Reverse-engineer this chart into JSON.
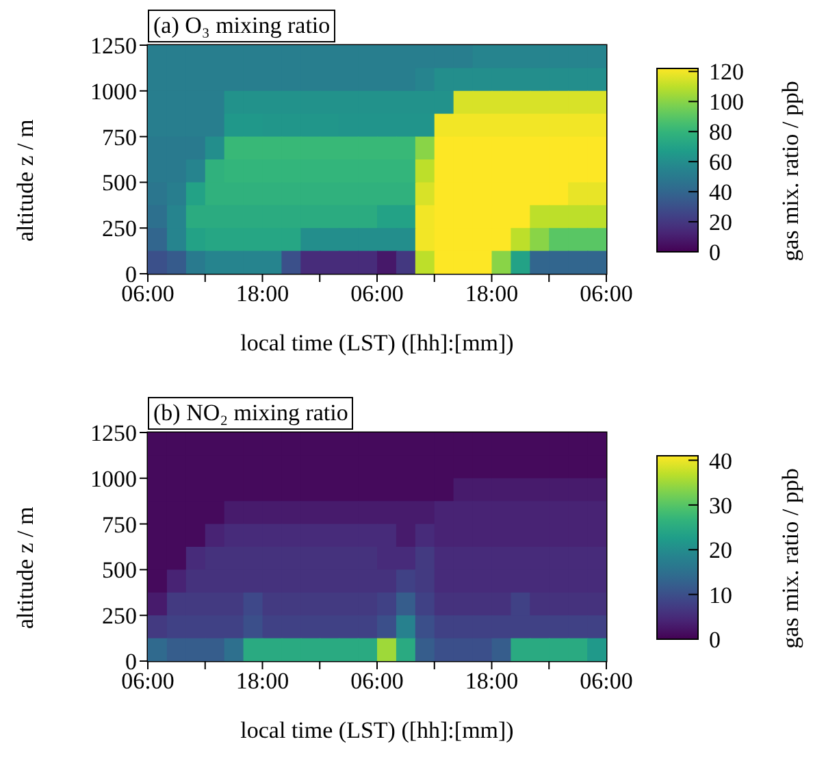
{
  "chart_data": [
    {
      "type": "scatter",
      "marker": "square",
      "title": "(a) O₃ mixing ratio",
      "xlabel": "local time (LST) ([hh]:[mm])",
      "ylabel": "altitude z / m",
      "clabel": "gas mix. ratio / ppb",
      "x": [
        "2000-01-01T07:00",
        "2000-01-01T09:00",
        "2000-01-01T11:00",
        "2000-01-01T13:00",
        "2000-01-01T15:00",
        "2000-01-01T17:00",
        "2000-01-01T19:00",
        "2000-01-01T21:00",
        "2000-01-01T23:00",
        "2000-01-02T01:00",
        "2000-01-02T03:00",
        "2000-01-02T05:00",
        "2000-01-02T07:00",
        "2000-01-02T09:00",
        "2000-01-02T11:00",
        "2000-01-02T13:00",
        "2000-01-02T15:00",
        "2000-01-02T17:00",
        "2000-01-02T19:00",
        "2000-01-02T21:00",
        "2000-01-02T23:00",
        "2000-01-03T01:00",
        "2000-01-03T03:00",
        "2000-01-03T05:00",
        "2000-01-01T07:00",
        "2000-01-01T09:00",
        "2000-01-01T11:00",
        "2000-01-01T13:00",
        "2000-01-01T15:00",
        "2000-01-01T17:00",
        "2000-01-01T19:00",
        "2000-01-01T21:00",
        "2000-01-01T23:00",
        "2000-01-02T01:00",
        "2000-01-02T03:00",
        "2000-01-02T05:00",
        "2000-01-02T07:00",
        "2000-01-02T09:00",
        "2000-01-02T11:00",
        "2000-01-02T13:00",
        "2000-01-02T15:00",
        "2000-01-02T17:00",
        "2000-01-02T19:00",
        "2000-01-02T21:00",
        "2000-01-02T23:00",
        "2000-01-03T01:00",
        "2000-01-03T03:00",
        "2000-01-03T05:00",
        "2000-01-01T07:00",
        "2000-01-01T09:00",
        "2000-01-01T11:00",
        "2000-01-01T13:00",
        "2000-01-01T15:00",
        "2000-01-01T17:00",
        "2000-01-01T19:00",
        "2000-01-01T21:00",
        "2000-01-01T23:00",
        "2000-01-02T01:00",
        "2000-01-02T03:00",
        "2000-01-02T05:00",
        "2000-01-02T07:00",
        "2000-01-02T09:00",
        "2000-01-02T11:00",
        "2000-01-02T13:00",
        "2000-01-02T15:00",
        "2000-01-02T17:00",
        "2000-01-02T19:00",
        "2000-01-02T21:00",
        "2000-01-02T23:00",
        "2000-01-03T01:00",
        "2000-01-03T03:00",
        "2000-01-03T05:00",
        "2000-01-01T07:00",
        "2000-01-01T09:00",
        "2000-01-01T11:00",
        "2000-01-01T13:00",
        "2000-01-01T15:00",
        "2000-01-01T17:00",
        "2000-01-01T19:00",
        "2000-01-01T21:00",
        "2000-01-01T23:00",
        "2000-01-02T01:00",
        "2000-01-02T03:00",
        "2000-01-02T05:00",
        "2000-01-02T07:00",
        "2000-01-02T09:00",
        "2000-01-02T11:00",
        "2000-01-02T13:00",
        "2000-01-02T15:00",
        "2000-01-02T17:00",
        "2000-01-02T19:00",
        "2000-01-02T21:00",
        "2000-01-02T23:00",
        "2000-01-03T01:00",
        "2000-01-03T03:00",
        "2000-01-03T05:00",
        "2000-01-01T07:00",
        "2000-01-01T09:00",
        "2000-01-01T11:00",
        "2000-01-01T13:00",
        "2000-01-01T15:00",
        "2000-01-01T17:00",
        "2000-01-01T19:00",
        "2000-01-01T21:00",
        "2000-01-01T23:00",
        "2000-01-02T01:00",
        "2000-01-02T03:00",
        "2000-01-02T05:00",
        "2000-01-02T07:00",
        "2000-01-02T09:00",
        "2000-01-02T11:00",
        "2000-01-02T13:00",
        "2000-01-02T15:00",
        "2000-01-02T17:00",
        "2000-01-02T19:00",
        "2000-01-02T21:00",
        "2000-01-02T23:00",
        "2000-01-03T01:00",
        "2000-01-03T03:00",
        "2000-01-03T05:00",
        "2000-01-01T07:00",
        "2000-01-01T09:00",
        "2000-01-01T11:00",
        "2000-01-01T13:00",
        "2000-01-01T15:00",
        "2000-01-01T17:00",
        "2000-01-01T19:00",
        "2000-01-01T21:00",
        "2000-01-01T23:00",
        "2000-01-02T01:00",
        "2000-01-02T03:00",
        "2000-01-02T05:00",
        "2000-01-02T07:00",
        "2000-01-02T09:00",
        "2000-01-02T11:00",
        "2000-01-02T13:00",
        "2000-01-02T15:00",
        "2000-01-02T17:00",
        "2000-01-02T19:00",
        "2000-01-02T21:00",
        "2000-01-02T23:00",
        "2000-01-03T01:00",
        "2000-01-03T03:00",
        "2000-01-03T05:00",
        "2000-01-01T07:00",
        "2000-01-01T09:00",
        "2000-01-01T11:00",
        "2000-01-01T13:00",
        "2000-01-01T15:00",
        "2000-01-01T17:00",
        "2000-01-01T19:00",
        "2000-01-01T21:00",
        "2000-01-01T23:00",
        "2000-01-02T01:00",
        "2000-01-02T03:00",
        "2000-01-02T05:00",
        "2000-01-02T07:00",
        "2000-01-02T09:00",
        "2000-01-02T11:00",
        "2000-01-02T13:00",
        "2000-01-02T15:00",
        "2000-01-02T17:00",
        "2000-01-02T19:00",
        "2000-01-02T21:00",
        "2000-01-02T23:00",
        "2000-01-03T01:00",
        "2000-01-03T03:00",
        "2000-01-03T05:00",
        "2000-01-01T07:00",
        "2000-01-01T09:00",
        "2000-01-01T11:00",
        "2000-01-01T13:00",
        "2000-01-01T15:00",
        "2000-01-01T17:00",
        "2000-01-01T19:00",
        "2000-01-01T21:00",
        "2000-01-01T23:00",
        "2000-01-02T01:00",
        "2000-01-02T03:00",
        "2000-01-02T05:00",
        "2000-01-02T07:00",
        "2000-01-02T09:00",
        "2000-01-02T11:00",
        "2000-01-02T13:00",
        "2000-01-02T15:00",
        "2000-01-02T17:00",
        "2000-01-02T19:00",
        "2000-01-02T21:00",
        "2000-01-02T23:00",
        "2000-01-03T01:00",
        "2000-01-03T03:00",
        "2000-01-03T05:00",
        "2000-01-01T07:00",
        "2000-01-01T09:00",
        "2000-01-01T11:00",
        "2000-01-01T13:00",
        "2000-01-01T15:00",
        "2000-01-01T17:00",
        "2000-01-01T19:00",
        "2000-01-01T21:00",
        "2000-01-01T23:00",
        "2000-01-02T01:00",
        "2000-01-02T03:00",
        "2000-01-02T05:00",
        "2000-01-02T07:00",
        "2000-01-02T09:00",
        "2000-01-02T11:00",
        "2000-01-02T13:00",
        "2000-01-02T15:00",
        "2000-01-02T17:00",
        "2000-01-02T19:00",
        "2000-01-02T21:00",
        "2000-01-02T23:00",
        "2000-01-03T01:00",
        "2000-01-03T03:00",
        "2000-01-03T05:00",
        "2000-01-01T07:00",
        "2000-01-01T09:00",
        "2000-01-01T11:00",
        "2000-01-01T13:00",
        "2000-01-01T15:00",
        "2000-01-01T17:00",
        "2000-01-01T19:00",
        "2000-01-01T21:00",
        "2000-01-01T23:00",
        "2000-01-02T01:00",
        "2000-01-02T03:00",
        "2000-01-02T05:00",
        "2000-01-02T07:00",
        "2000-01-02T09:00",
        "2000-01-02T11:00",
        "2000-01-02T13:00",
        "2000-01-02T15:00",
        "2000-01-02T17:00",
        "2000-01-02T19:00",
        "2000-01-02T21:00",
        "2000-01-02T23:00",
        "2000-01-03T01:00",
        "2000-01-03T03:00",
        "2000-01-03T05:00"
      ],
      "values": [
        1187.5,
        1187.5,
        1187.5,
        1187.5,
        1187.5,
        1187.5,
        1187.5,
        1187.5,
        1187.5,
        1187.5,
        1187.5,
        1187.5,
        1187.5,
        1187.5,
        1187.5,
        1187.5,
        1187.5,
        1187.5,
        1187.5,
        1187.5,
        1187.5,
        1187.5,
        1187.5,
        1187.5,
        1062.5,
        1062.5,
        1062.5,
        1062.5,
        1062.5,
        1062.5,
        1062.5,
        1062.5,
        1062.5,
        1062.5,
        1062.5,
        1062.5,
        1062.5,
        1062.5,
        1062.5,
        1062.5,
        1062.5,
        1062.5,
        1062.5,
        1062.5,
        1062.5,
        1062.5,
        1062.5,
        1062.5,
        937.5,
        937.5,
        937.5,
        937.5,
        937.5,
        937.5,
        937.5,
        937.5,
        937.5,
        937.5,
        937.5,
        937.5,
        937.5,
        937.5,
        937.5,
        937.5,
        937.5,
        937.5,
        937.5,
        937.5,
        937.5,
        937.5,
        937.5,
        937.5,
        812.5,
        812.5,
        812.5,
        812.5,
        812.5,
        812.5,
        812.5,
        812.5,
        812.5,
        812.5,
        812.5,
        812.5,
        812.5,
        812.5,
        812.5,
        812.5,
        812.5,
        812.5,
        812.5,
        812.5,
        812.5,
        812.5,
        812.5,
        812.5,
        687.5,
        687.5,
        687.5,
        687.5,
        687.5,
        687.5,
        687.5,
        687.5,
        687.5,
        687.5,
        687.5,
        687.5,
        687.5,
        687.5,
        687.5,
        687.5,
        687.5,
        687.5,
        687.5,
        687.5,
        687.5,
        687.5,
        687.5,
        687.5,
        562.5,
        562.5,
        562.5,
        562.5,
        562.5,
        562.5,
        562.5,
        562.5,
        562.5,
        562.5,
        562.5,
        562.5,
        562.5,
        562.5,
        562.5,
        562.5,
        562.5,
        562.5,
        562.5,
        562.5,
        562.5,
        562.5,
        562.5,
        562.5,
        437.5,
        437.5,
        437.5,
        437.5,
        437.5,
        437.5,
        437.5,
        437.5,
        437.5,
        437.5,
        437.5,
        437.5,
        437.5,
        437.5,
        437.5,
        437.5,
        437.5,
        437.5,
        437.5,
        437.5,
        437.5,
        437.5,
        437.5,
        437.5,
        312.5,
        312.5,
        312.5,
        312.5,
        312.5,
        312.5,
        312.5,
        312.5,
        312.5,
        312.5,
        312.5,
        312.5,
        312.5,
        312.5,
        312.5,
        312.5,
        312.5,
        312.5,
        312.5,
        312.5,
        312.5,
        312.5,
        312.5,
        312.5,
        187.5,
        187.5,
        187.5,
        187.5,
        187.5,
        187.5,
        187.5,
        187.5,
        187.5,
        187.5,
        187.5,
        187.5,
        187.5,
        187.5,
        187.5,
        187.5,
        187.5,
        187.5,
        187.5,
        187.5,
        187.5,
        187.5,
        187.5,
        187.5,
        62.5,
        62.5,
        62.5,
        62.5,
        62.5,
        62.5,
        62.5,
        62.5,
        62.5,
        62.5,
        62.5,
        62.5,
        62.5,
        62.5,
        62.5,
        62.5,
        62.5,
        62.5,
        62.5,
        62.5,
        62.5,
        62.5,
        62.5,
        62.5
      ],
      "cvalues": [
        52,
        52,
        52,
        52,
        52,
        52,
        52,
        52,
        52,
        52,
        52,
        52,
        52,
        52,
        52,
        52,
        52,
        55,
        55,
        55,
        55,
        55,
        55,
        55,
        52,
        52,
        52,
        52,
        52,
        52,
        52,
        52,
        52,
        52,
        52,
        52,
        52,
        52,
        55,
        60,
        60,
        60,
        60,
        60,
        60,
        60,
        60,
        60,
        52,
        52,
        52,
        52,
        62,
        62,
        62,
        62,
        62,
        62,
        62,
        62,
        62,
        62,
        62,
        62,
        115,
        115,
        115,
        115,
        115,
        115,
        115,
        115,
        52,
        52,
        52,
        52,
        65,
        65,
        64,
        64,
        64,
        64,
        63,
        63,
        63,
        63,
        63,
        120,
        120,
        120,
        120,
        120,
        120,
        120,
        120,
        120,
        50,
        50,
        50,
        60,
        82,
        82,
        82,
        82,
        82,
        82,
        82,
        82,
        82,
        82,
        100,
        122,
        122,
        122,
        122,
        122,
        122,
        122,
        122,
        122,
        50,
        50,
        55,
        78,
        80,
        80,
        80,
        80,
        80,
        80,
        80,
        80,
        80,
        80,
        110,
        122,
        122,
        122,
        122,
        122,
        122,
        122,
        122,
        122,
        48,
        52,
        70,
        78,
        78,
        78,
        78,
        78,
        78,
        78,
        78,
        78,
        78,
        78,
        115,
        122,
        122,
        122,
        122,
        122,
        122,
        122,
        118,
        118,
        45,
        55,
        75,
        75,
        75,
        75,
        75,
        75,
        75,
        75,
        75,
        75,
        70,
        70,
        120,
        122,
        122,
        122,
        122,
        122,
        110,
        110,
        110,
        110,
        40,
        55,
        70,
        72,
        72,
        72,
        72,
        72,
        60,
        60,
        60,
        60,
        60,
        60,
        120,
        122,
        122,
        122,
        122,
        110,
        100,
        90,
        90,
        90,
        30,
        35,
        50,
        55,
        55,
        55,
        55,
        30,
        15,
        15,
        15,
        15,
        8,
        20,
        110,
        122,
        122,
        122,
        100,
        70,
        40,
        40,
        40,
        40
      ],
      "clim": [
        0,
        122
      ],
      "cticks": [
        0,
        20,
        40,
        60,
        80,
        100,
        120
      ],
      "xlim": [
        "2000-01-01T06:00",
        "2000-01-03T06:00"
      ],
      "xticks": [
        {
          "value": "2000-01-01T06:00",
          "label": "06:00"
        },
        {
          "value": "2000-01-01T12:00",
          "label": null
        },
        {
          "value": "2000-01-01T18:00",
          "label": "18:00"
        },
        {
          "value": "2000-01-02T00:00",
          "label": null
        },
        {
          "value": "2000-01-02T06:00",
          "label": "06:00"
        },
        {
          "value": "2000-01-02T12:00",
          "label": null
        },
        {
          "value": "2000-01-02T18:00",
          "label": "18:00"
        },
        {
          "value": "2000-01-03T00:00",
          "label": null
        },
        {
          "value": "2000-01-03T06:00",
          "label": "06:00"
        }
      ],
      "ylim": [
        0,
        1250
      ],
      "yticks": [
        0,
        250,
        500,
        750,
        1000,
        1250
      ]
    },
    {
      "type": "scatter",
      "marker": "square",
      "title": "(b) NO₂ mixing ratio",
      "xlabel": "local time (LST) ([hh]:[mm])",
      "ylabel": "altitude z / m",
      "clabel": "gas mix. ratio / ppb",
      "x": [
        "2000-01-01T07:00",
        "2000-01-01T09:00",
        "2000-01-01T11:00",
        "2000-01-01T13:00",
        "2000-01-01T15:00",
        "2000-01-01T17:00",
        "2000-01-01T19:00",
        "2000-01-01T21:00",
        "2000-01-01T23:00",
        "2000-01-02T01:00",
        "2000-01-02T03:00",
        "2000-01-02T05:00",
        "2000-01-02T07:00",
        "2000-01-02T09:00",
        "2000-01-02T11:00",
        "2000-01-02T13:00",
        "2000-01-02T15:00",
        "2000-01-02T17:00",
        "2000-01-02T19:00",
        "2000-01-02T21:00",
        "2000-01-02T23:00",
        "2000-01-03T01:00",
        "2000-01-03T03:00",
        "2000-01-03T05:00",
        "2000-01-01T07:00",
        "2000-01-01T09:00",
        "2000-01-01T11:00",
        "2000-01-01T13:00",
        "2000-01-01T15:00",
        "2000-01-01T17:00",
        "2000-01-01T19:00",
        "2000-01-01T21:00",
        "2000-01-01T23:00",
        "2000-01-02T01:00",
        "2000-01-02T03:00",
        "2000-01-02T05:00",
        "2000-01-02T07:00",
        "2000-01-02T09:00",
        "2000-01-02T11:00",
        "2000-01-02T13:00",
        "2000-01-02T15:00",
        "2000-01-02T17:00",
        "2000-01-02T19:00",
        "2000-01-02T21:00",
        "2000-01-02T23:00",
        "2000-01-03T01:00",
        "2000-01-03T03:00",
        "2000-01-03T05:00",
        "2000-01-01T07:00",
        "2000-01-01T09:00",
        "2000-01-01T11:00",
        "2000-01-01T13:00",
        "2000-01-01T15:00",
        "2000-01-01T17:00",
        "2000-01-01T19:00",
        "2000-01-01T21:00",
        "2000-01-01T23:00",
        "2000-01-02T01:00",
        "2000-01-02T03:00",
        "2000-01-02T05:00",
        "2000-01-02T07:00",
        "2000-01-02T09:00",
        "2000-01-02T11:00",
        "2000-01-02T13:00",
        "2000-01-02T15:00",
        "2000-01-02T17:00",
        "2000-01-02T19:00",
        "2000-01-02T21:00",
        "2000-01-02T23:00",
        "2000-01-03T01:00",
        "2000-01-03T03:00",
        "2000-01-03T05:00",
        "2000-01-01T07:00",
        "2000-01-01T09:00",
        "2000-01-01T11:00",
        "2000-01-01T13:00",
        "2000-01-01T15:00",
        "2000-01-01T17:00",
        "2000-01-01T19:00",
        "2000-01-01T21:00",
        "2000-01-01T23:00",
        "2000-01-02T01:00",
        "2000-01-02T03:00",
        "2000-01-02T05:00",
        "2000-01-02T07:00",
        "2000-01-02T09:00",
        "2000-01-02T11:00",
        "2000-01-02T13:00",
        "2000-01-02T15:00",
        "2000-01-02T17:00",
        "2000-01-02T19:00",
        "2000-01-02T21:00",
        "2000-01-02T23:00",
        "2000-01-03T01:00",
        "2000-01-03T03:00",
        "2000-01-03T05:00",
        "2000-01-01T07:00",
        "2000-01-01T09:00",
        "2000-01-01T11:00",
        "2000-01-01T13:00",
        "2000-01-01T15:00",
        "2000-01-01T17:00",
        "2000-01-01T19:00",
        "2000-01-01T21:00",
        "2000-01-01T23:00",
        "2000-01-02T01:00",
        "2000-01-02T03:00",
        "2000-01-02T05:00",
        "2000-01-02T07:00",
        "2000-01-02T09:00",
        "2000-01-02T11:00",
        "2000-01-02T13:00",
        "2000-01-02T15:00",
        "2000-01-02T17:00",
        "2000-01-02T19:00",
        "2000-01-02T21:00",
        "2000-01-02T23:00",
        "2000-01-03T01:00",
        "2000-01-03T03:00",
        "2000-01-03T05:00",
        "2000-01-01T07:00",
        "2000-01-01T09:00",
        "2000-01-01T11:00",
        "2000-01-01T13:00",
        "2000-01-01T15:00",
        "2000-01-01T17:00",
        "2000-01-01T19:00",
        "2000-01-01T21:00",
        "2000-01-01T23:00",
        "2000-01-02T01:00",
        "2000-01-02T03:00",
        "2000-01-02T05:00",
        "2000-01-02T07:00",
        "2000-01-02T09:00",
        "2000-01-02T11:00",
        "2000-01-02T13:00",
        "2000-01-02T15:00",
        "2000-01-02T17:00",
        "2000-01-02T19:00",
        "2000-01-02T21:00",
        "2000-01-02T23:00",
        "2000-01-03T01:00",
        "2000-01-03T03:00",
        "2000-01-03T05:00",
        "2000-01-01T07:00",
        "2000-01-01T09:00",
        "2000-01-01T11:00",
        "2000-01-01T13:00",
        "2000-01-01T15:00",
        "2000-01-01T17:00",
        "2000-01-01T19:00",
        "2000-01-01T21:00",
        "2000-01-01T23:00",
        "2000-01-02T01:00",
        "2000-01-02T03:00",
        "2000-01-02T05:00",
        "2000-01-02T07:00",
        "2000-01-02T09:00",
        "2000-01-02T11:00",
        "2000-01-02T13:00",
        "2000-01-02T15:00",
        "2000-01-02T17:00",
        "2000-01-02T19:00",
        "2000-01-02T21:00",
        "2000-01-02T23:00",
        "2000-01-03T01:00",
        "2000-01-03T03:00",
        "2000-01-03T05:00",
        "2000-01-01T07:00",
        "2000-01-01T09:00",
        "2000-01-01T11:00",
        "2000-01-01T13:00",
        "2000-01-01T15:00",
        "2000-01-01T17:00",
        "2000-01-01T19:00",
        "2000-01-01T21:00",
        "2000-01-01T23:00",
        "2000-01-02T01:00",
        "2000-01-02T03:00",
        "2000-01-02T05:00",
        "2000-01-02T07:00",
        "2000-01-02T09:00",
        "2000-01-02T11:00",
        "2000-01-02T13:00",
        "2000-01-02T15:00",
        "2000-01-02T17:00",
        "2000-01-02T19:00",
        "2000-01-02T21:00",
        "2000-01-02T23:00",
        "2000-01-03T01:00",
        "2000-01-03T03:00",
        "2000-01-03T05:00",
        "2000-01-01T07:00",
        "2000-01-01T09:00",
        "2000-01-01T11:00",
        "2000-01-01T13:00",
        "2000-01-01T15:00",
        "2000-01-01T17:00",
        "2000-01-01T19:00",
        "2000-01-01T21:00",
        "2000-01-01T23:00",
        "2000-01-02T01:00",
        "2000-01-02T03:00",
        "2000-01-02T05:00",
        "2000-01-02T07:00",
        "2000-01-02T09:00",
        "2000-01-02T11:00",
        "2000-01-02T13:00",
        "2000-01-02T15:00",
        "2000-01-02T17:00",
        "2000-01-02T19:00",
        "2000-01-02T21:00",
        "2000-01-02T23:00",
        "2000-01-03T01:00",
        "2000-01-03T03:00",
        "2000-01-03T05:00",
        "2000-01-01T07:00",
        "2000-01-01T09:00",
        "2000-01-01T11:00",
        "2000-01-01T13:00",
        "2000-01-01T15:00",
        "2000-01-01T17:00",
        "2000-01-01T19:00",
        "2000-01-01T21:00",
        "2000-01-01T23:00",
        "2000-01-02T01:00",
        "2000-01-02T03:00",
        "2000-01-02T05:00",
        "2000-01-02T07:00",
        "2000-01-02T09:00",
        "2000-01-02T11:00",
        "2000-01-02T13:00",
        "2000-01-02T15:00",
        "2000-01-02T17:00",
        "2000-01-02T19:00",
        "2000-01-02T21:00",
        "2000-01-02T23:00",
        "2000-01-03T01:00",
        "2000-01-03T03:00",
        "2000-01-03T05:00"
      ],
      "values": [
        1187.5,
        1187.5,
        1187.5,
        1187.5,
        1187.5,
        1187.5,
        1187.5,
        1187.5,
        1187.5,
        1187.5,
        1187.5,
        1187.5,
        1187.5,
        1187.5,
        1187.5,
        1187.5,
        1187.5,
        1187.5,
        1187.5,
        1187.5,
        1187.5,
        1187.5,
        1187.5,
        1187.5,
        1062.5,
        1062.5,
        1062.5,
        1062.5,
        1062.5,
        1062.5,
        1062.5,
        1062.5,
        1062.5,
        1062.5,
        1062.5,
        1062.5,
        1062.5,
        1062.5,
        1062.5,
        1062.5,
        1062.5,
        1062.5,
        1062.5,
        1062.5,
        1062.5,
        1062.5,
        1062.5,
        1062.5,
        937.5,
        937.5,
        937.5,
        937.5,
        937.5,
        937.5,
        937.5,
        937.5,
        937.5,
        937.5,
        937.5,
        937.5,
        937.5,
        937.5,
        937.5,
        937.5,
        937.5,
        937.5,
        937.5,
        937.5,
        937.5,
        937.5,
        937.5,
        937.5,
        812.5,
        812.5,
        812.5,
        812.5,
        812.5,
        812.5,
        812.5,
        812.5,
        812.5,
        812.5,
        812.5,
        812.5,
        812.5,
        812.5,
        812.5,
        812.5,
        812.5,
        812.5,
        812.5,
        812.5,
        812.5,
        812.5,
        812.5,
        812.5,
        687.5,
        687.5,
        687.5,
        687.5,
        687.5,
        687.5,
        687.5,
        687.5,
        687.5,
        687.5,
        687.5,
        687.5,
        687.5,
        687.5,
        687.5,
        687.5,
        687.5,
        687.5,
        687.5,
        687.5,
        687.5,
        687.5,
        687.5,
        687.5,
        562.5,
        562.5,
        562.5,
        562.5,
        562.5,
        562.5,
        562.5,
        562.5,
        562.5,
        562.5,
        562.5,
        562.5,
        562.5,
        562.5,
        562.5,
        562.5,
        562.5,
        562.5,
        562.5,
        562.5,
        562.5,
        562.5,
        562.5,
        562.5,
        437.5,
        437.5,
        437.5,
        437.5,
        437.5,
        437.5,
        437.5,
        437.5,
        437.5,
        437.5,
        437.5,
        437.5,
        437.5,
        437.5,
        437.5,
        437.5,
        437.5,
        437.5,
        437.5,
        437.5,
        437.5,
        437.5,
        437.5,
        437.5,
        312.5,
        312.5,
        312.5,
        312.5,
        312.5,
        312.5,
        312.5,
        312.5,
        312.5,
        312.5,
        312.5,
        312.5,
        312.5,
        312.5,
        312.5,
        312.5,
        312.5,
        312.5,
        312.5,
        312.5,
        312.5,
        312.5,
        312.5,
        312.5,
        187.5,
        187.5,
        187.5,
        187.5,
        187.5,
        187.5,
        187.5,
        187.5,
        187.5,
        187.5,
        187.5,
        187.5,
        187.5,
        187.5,
        187.5,
        187.5,
        187.5,
        187.5,
        187.5,
        187.5,
        187.5,
        187.5,
        187.5,
        187.5,
        62.5,
        62.5,
        62.5,
        62.5,
        62.5,
        62.5,
        62.5,
        62.5,
        62.5,
        62.5,
        62.5,
        62.5,
        62.5,
        62.5,
        62.5,
        62.5,
        62.5,
        62.5,
        62.5,
        62.5,
        62.5,
        62.5,
        62.5,
        62.5
      ],
      "cvalues": [
        1,
        1,
        1,
        1,
        1,
        1,
        1,
        1,
        1,
        1,
        1,
        1,
        1,
        1,
        1,
        1,
        1,
        1,
        1,
        1,
        1,
        1,
        1,
        1,
        1,
        1,
        1,
        1,
        1,
        1,
        1,
        1,
        1,
        1,
        1,
        1,
        1,
        1,
        1,
        1,
        1,
        1,
        1,
        1,
        1,
        1,
        1,
        1,
        1,
        1,
        1,
        1,
        1,
        1,
        1,
        1,
        1,
        1,
        1,
        1,
        1,
        1,
        1,
        1,
        3,
        3,
        3,
        3,
        3,
        3,
        3,
        3,
        1,
        1,
        1,
        1,
        3,
        3,
        3,
        3,
        3,
        3,
        3,
        3,
        3,
        3,
        3,
        4,
        4,
        4,
        4,
        4,
        4,
        4,
        4,
        4,
        1,
        1,
        1,
        4,
        5,
        5,
        5,
        5,
        5,
        5,
        5,
        5,
        5,
        3,
        5,
        4,
        4,
        4,
        4,
        4,
        4,
        4,
        4,
        4,
        1,
        1,
        5,
        6,
        6,
        6,
        6,
        6,
        6,
        6,
        6,
        6,
        5,
        5,
        7,
        5,
        5,
        5,
        5,
        5,
        5,
        5,
        5,
        5,
        1,
        4,
        6,
        6,
        6,
        6,
        6,
        6,
        6,
        6,
        6,
        6,
        6,
        8,
        7,
        5,
        5,
        5,
        5,
        5,
        5,
        5,
        5,
        5,
        3,
        7,
        7,
        7,
        7,
        9,
        7,
        7,
        7,
        7,
        7,
        7,
        8,
        12,
        8,
        6,
        6,
        6,
        6,
        8,
        6,
        6,
        6,
        6,
        7,
        8,
        8,
        8,
        8,
        10,
        8,
        8,
        8,
        8,
        8,
        8,
        10,
        18,
        10,
        8,
        8,
        8,
        8,
        8,
        8,
        8,
        8,
        8,
        14,
        12,
        12,
        12,
        15,
        25,
        25,
        25,
        25,
        25,
        25,
        25,
        35,
        25,
        12,
        10,
        10,
        10,
        12,
        25,
        25,
        25,
        25,
        22
      ],
      "clim": [
        0,
        41
      ],
      "cticks": [
        0,
        10,
        20,
        30,
        40
      ],
      "xlim": [
        "2000-01-01T06:00",
        "2000-01-03T06:00"
      ],
      "xticks": [
        {
          "value": "2000-01-01T06:00",
          "label": "06:00"
        },
        {
          "value": "2000-01-01T12:00",
          "label": null
        },
        {
          "value": "2000-01-01T18:00",
          "label": "18:00"
        },
        {
          "value": "2000-01-02T00:00",
          "label": null
        },
        {
          "value": "2000-01-02T06:00",
          "label": "06:00"
        },
        {
          "value": "2000-01-02T12:00",
          "label": null
        },
        {
          "value": "2000-01-02T18:00",
          "label": "18:00"
        },
        {
          "value": "2000-01-03T00:00",
          "label": null
        },
        {
          "value": "2000-01-03T06:00",
          "label": "06:00"
        }
      ],
      "ylim": [
        0,
        1250
      ],
      "yticks": [
        0,
        250,
        500,
        750,
        1000,
        1250
      ]
    }
  ]
}
